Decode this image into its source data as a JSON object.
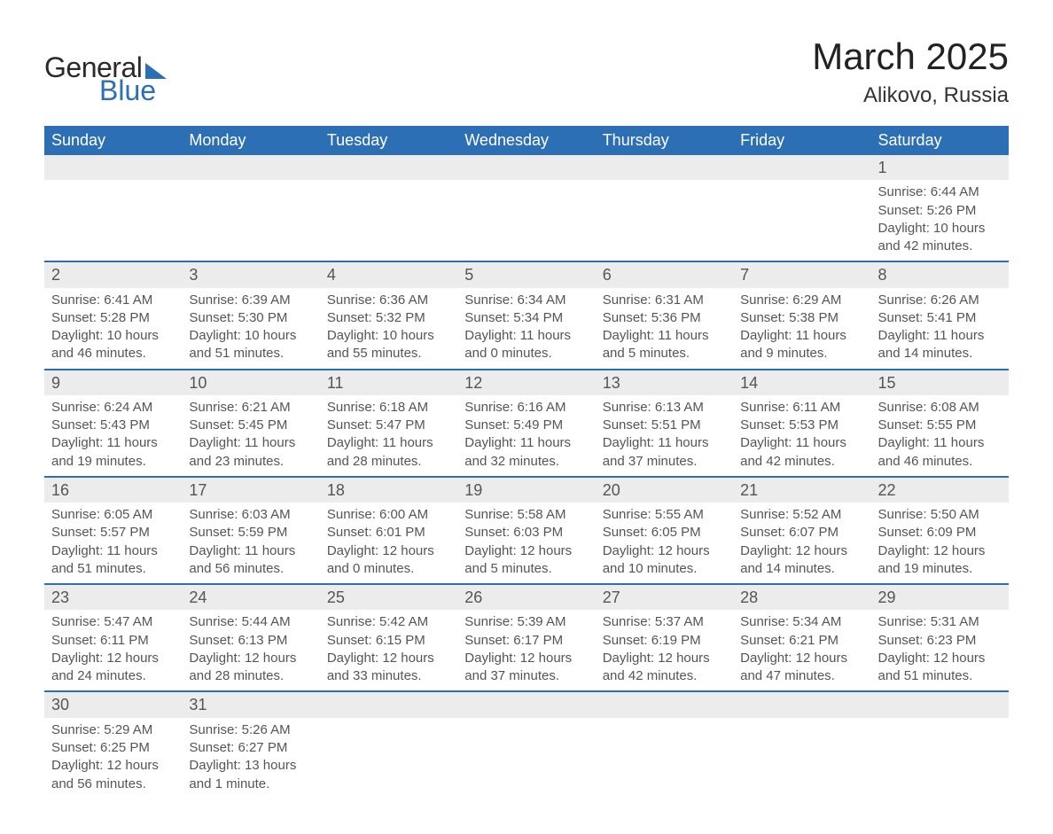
{
  "logo": {
    "text1": "General",
    "text2": "Blue"
  },
  "title": "March 2025",
  "location": "Alikovo, Russia",
  "colors": {
    "header_bg": "#2d6fb5",
    "header_text": "#ffffff",
    "daynum_bg": "#ececec",
    "row_border": "#2d6fb5",
    "body_text": "#555555",
    "title_text": "#222222"
  },
  "day_headers": [
    "Sunday",
    "Monday",
    "Tuesday",
    "Wednesday",
    "Thursday",
    "Friday",
    "Saturday"
  ],
  "weeks": [
    [
      null,
      null,
      null,
      null,
      null,
      null,
      {
        "n": "1",
        "sr": "Sunrise: 6:44 AM",
        "ss": "Sunset: 5:26 PM",
        "d1": "Daylight: 10 hours",
        "d2": "and 42 minutes."
      }
    ],
    [
      {
        "n": "2",
        "sr": "Sunrise: 6:41 AM",
        "ss": "Sunset: 5:28 PM",
        "d1": "Daylight: 10 hours",
        "d2": "and 46 minutes."
      },
      {
        "n": "3",
        "sr": "Sunrise: 6:39 AM",
        "ss": "Sunset: 5:30 PM",
        "d1": "Daylight: 10 hours",
        "d2": "and 51 minutes."
      },
      {
        "n": "4",
        "sr": "Sunrise: 6:36 AM",
        "ss": "Sunset: 5:32 PM",
        "d1": "Daylight: 10 hours",
        "d2": "and 55 minutes."
      },
      {
        "n": "5",
        "sr": "Sunrise: 6:34 AM",
        "ss": "Sunset: 5:34 PM",
        "d1": "Daylight: 11 hours",
        "d2": "and 0 minutes."
      },
      {
        "n": "6",
        "sr": "Sunrise: 6:31 AM",
        "ss": "Sunset: 5:36 PM",
        "d1": "Daylight: 11 hours",
        "d2": "and 5 minutes."
      },
      {
        "n": "7",
        "sr": "Sunrise: 6:29 AM",
        "ss": "Sunset: 5:38 PM",
        "d1": "Daylight: 11 hours",
        "d2": "and 9 minutes."
      },
      {
        "n": "8",
        "sr": "Sunrise: 6:26 AM",
        "ss": "Sunset: 5:41 PM",
        "d1": "Daylight: 11 hours",
        "d2": "and 14 minutes."
      }
    ],
    [
      {
        "n": "9",
        "sr": "Sunrise: 6:24 AM",
        "ss": "Sunset: 5:43 PM",
        "d1": "Daylight: 11 hours",
        "d2": "and 19 minutes."
      },
      {
        "n": "10",
        "sr": "Sunrise: 6:21 AM",
        "ss": "Sunset: 5:45 PM",
        "d1": "Daylight: 11 hours",
        "d2": "and 23 minutes."
      },
      {
        "n": "11",
        "sr": "Sunrise: 6:18 AM",
        "ss": "Sunset: 5:47 PM",
        "d1": "Daylight: 11 hours",
        "d2": "and 28 minutes."
      },
      {
        "n": "12",
        "sr": "Sunrise: 6:16 AM",
        "ss": "Sunset: 5:49 PM",
        "d1": "Daylight: 11 hours",
        "d2": "and 32 minutes."
      },
      {
        "n": "13",
        "sr": "Sunrise: 6:13 AM",
        "ss": "Sunset: 5:51 PM",
        "d1": "Daylight: 11 hours",
        "d2": "and 37 minutes."
      },
      {
        "n": "14",
        "sr": "Sunrise: 6:11 AM",
        "ss": "Sunset: 5:53 PM",
        "d1": "Daylight: 11 hours",
        "d2": "and 42 minutes."
      },
      {
        "n": "15",
        "sr": "Sunrise: 6:08 AM",
        "ss": "Sunset: 5:55 PM",
        "d1": "Daylight: 11 hours",
        "d2": "and 46 minutes."
      }
    ],
    [
      {
        "n": "16",
        "sr": "Sunrise: 6:05 AM",
        "ss": "Sunset: 5:57 PM",
        "d1": "Daylight: 11 hours",
        "d2": "and 51 minutes."
      },
      {
        "n": "17",
        "sr": "Sunrise: 6:03 AM",
        "ss": "Sunset: 5:59 PM",
        "d1": "Daylight: 11 hours",
        "d2": "and 56 minutes."
      },
      {
        "n": "18",
        "sr": "Sunrise: 6:00 AM",
        "ss": "Sunset: 6:01 PM",
        "d1": "Daylight: 12 hours",
        "d2": "and 0 minutes."
      },
      {
        "n": "19",
        "sr": "Sunrise: 5:58 AM",
        "ss": "Sunset: 6:03 PM",
        "d1": "Daylight: 12 hours",
        "d2": "and 5 minutes."
      },
      {
        "n": "20",
        "sr": "Sunrise: 5:55 AM",
        "ss": "Sunset: 6:05 PM",
        "d1": "Daylight: 12 hours",
        "d2": "and 10 minutes."
      },
      {
        "n": "21",
        "sr": "Sunrise: 5:52 AM",
        "ss": "Sunset: 6:07 PM",
        "d1": "Daylight: 12 hours",
        "d2": "and 14 minutes."
      },
      {
        "n": "22",
        "sr": "Sunrise: 5:50 AM",
        "ss": "Sunset: 6:09 PM",
        "d1": "Daylight: 12 hours",
        "d2": "and 19 minutes."
      }
    ],
    [
      {
        "n": "23",
        "sr": "Sunrise: 5:47 AM",
        "ss": "Sunset: 6:11 PM",
        "d1": "Daylight: 12 hours",
        "d2": "and 24 minutes."
      },
      {
        "n": "24",
        "sr": "Sunrise: 5:44 AM",
        "ss": "Sunset: 6:13 PM",
        "d1": "Daylight: 12 hours",
        "d2": "and 28 minutes."
      },
      {
        "n": "25",
        "sr": "Sunrise: 5:42 AM",
        "ss": "Sunset: 6:15 PM",
        "d1": "Daylight: 12 hours",
        "d2": "and 33 minutes."
      },
      {
        "n": "26",
        "sr": "Sunrise: 5:39 AM",
        "ss": "Sunset: 6:17 PM",
        "d1": "Daylight: 12 hours",
        "d2": "and 37 minutes."
      },
      {
        "n": "27",
        "sr": "Sunrise: 5:37 AM",
        "ss": "Sunset: 6:19 PM",
        "d1": "Daylight: 12 hours",
        "d2": "and 42 minutes."
      },
      {
        "n": "28",
        "sr": "Sunrise: 5:34 AM",
        "ss": "Sunset: 6:21 PM",
        "d1": "Daylight: 12 hours",
        "d2": "and 47 minutes."
      },
      {
        "n": "29",
        "sr": "Sunrise: 5:31 AM",
        "ss": "Sunset: 6:23 PM",
        "d1": "Daylight: 12 hours",
        "d2": "and 51 minutes."
      }
    ],
    [
      {
        "n": "30",
        "sr": "Sunrise: 5:29 AM",
        "ss": "Sunset: 6:25 PM",
        "d1": "Daylight: 12 hours",
        "d2": "and 56 minutes."
      },
      {
        "n": "31",
        "sr": "Sunrise: 5:26 AM",
        "ss": "Sunset: 6:27 PM",
        "d1": "Daylight: 13 hours",
        "d2": "and 1 minute."
      },
      null,
      null,
      null,
      null,
      null
    ]
  ]
}
